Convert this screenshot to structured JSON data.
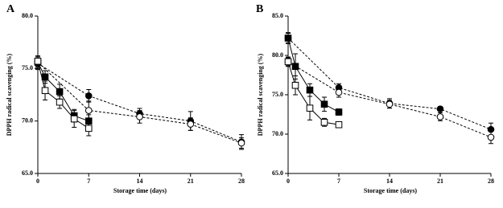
{
  "chart_data": [
    {
      "type": "line",
      "title": "A",
      "ylabel": "DPPH radical scavenging (%)",
      "xlabel": "Storage time (days)",
      "xlim": [
        0,
        28
      ],
      "xticks": [
        0,
        7,
        14,
        21,
        28
      ],
      "ylim": [
        65,
        80
      ],
      "yticks": [
        {
          "value": 65,
          "label": "65.0"
        },
        {
          "value": 70,
          "label": "70.0"
        },
        {
          "value": 75,
          "label": "75.0"
        },
        {
          "value": 80,
          "label": "80.0"
        }
      ],
      "series": [
        {
          "color": "#000000",
          "marker": "circle",
          "filled": true,
          "dashed": true,
          "x": [
            0,
            7,
            14,
            21,
            28
          ],
          "values": [
            75.5,
            72.4,
            70.7,
            70.0,
            68.0
          ],
          "errors": [
            0.6,
            0.6,
            0.5,
            0.9,
            0.7
          ]
        },
        {
          "color": "#000000",
          "marker": "circle",
          "filled": false,
          "dashed": true,
          "x": [
            0,
            7,
            14,
            21,
            28
          ],
          "values": [
            75.6,
            71.0,
            70.4,
            69.7,
            67.9
          ],
          "errors": [
            0.6,
            0.9,
            0.6,
            0.6,
            0.5
          ]
        },
        {
          "color": "#000000",
          "marker": "square",
          "filled": true,
          "dashed": false,
          "x": [
            0,
            1,
            3,
            5,
            7
          ],
          "values": [
            75.6,
            74.2,
            72.8,
            70.5,
            70.0
          ],
          "errors": [
            0.5,
            0.6,
            0.7,
            0.6,
            0.6
          ]
        },
        {
          "color": "#000000",
          "marker": "square",
          "filled": false,
          "dashed": false,
          "x": [
            0,
            1,
            3,
            5,
            7
          ],
          "values": [
            75.7,
            72.9,
            71.8,
            70.2,
            69.3
          ],
          "errors": [
            0.5,
            0.9,
            0.6,
            0.8,
            0.7
          ]
        }
      ]
    },
    {
      "type": "line",
      "title": "B",
      "ylabel": "DPPH radical scavenging (%)",
      "xlabel": "Storage time (days)",
      "xlim": [
        0,
        28
      ],
      "xticks": [
        0,
        7,
        14,
        21,
        28
      ],
      "ylim": [
        65,
        85
      ],
      "yticks": [
        {
          "value": 65,
          "label": "65.0"
        },
        {
          "value": 70,
          "label": "70.0"
        },
        {
          "value": 75,
          "label": "75.0"
        },
        {
          "value": 80,
          "label": "80.0"
        },
        {
          "value": 85,
          "label": "85.0"
        }
      ],
      "series": [
        {
          "color": "#000000",
          "marker": "circle",
          "filled": true,
          "dashed": true,
          "x": [
            0,
            7,
            14,
            21,
            28
          ],
          "values": [
            82.2,
            75.9,
            73.9,
            73.2,
            70.6
          ],
          "errors": [
            0.6,
            0.5,
            0.6,
            0.3,
            0.8
          ]
        },
        {
          "color": "#000000",
          "marker": "circle",
          "filled": false,
          "dashed": true,
          "x": [
            0,
            7,
            14,
            21,
            28
          ],
          "values": [
            79.2,
            75.3,
            73.8,
            72.2,
            69.6
          ],
          "errors": [
            0.5,
            0.6,
            0.5,
            0.5,
            0.8
          ]
        },
        {
          "color": "#000000",
          "marker": "square",
          "filled": true,
          "dashed": false,
          "x": [
            0,
            1,
            3,
            5,
            7
          ],
          "values": [
            82.2,
            78.6,
            75.6,
            73.8,
            72.8
          ],
          "errors": [
            0.7,
            1.6,
            0.8,
            0.9,
            0.4
          ]
        },
        {
          "color": "#000000",
          "marker": "square",
          "filled": false,
          "dashed": false,
          "x": [
            0,
            1,
            3,
            5,
            7
          ],
          "values": [
            79.2,
            76.2,
            73.3,
            71.5,
            71.2
          ],
          "errors": [
            0.6,
            1.2,
            1.5,
            0.5,
            0.3
          ]
        }
      ]
    }
  ]
}
